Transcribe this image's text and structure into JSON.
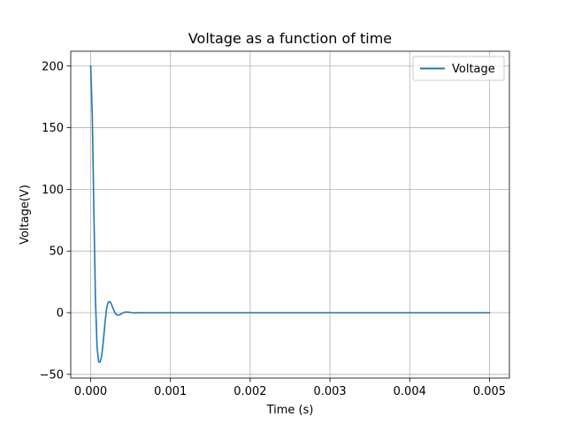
{
  "chart_data": {
    "type": "line",
    "title": "Voltage as a function of time",
    "xlabel": "Time (s)",
    "ylabel": "Voltage(V)",
    "xlim": [
      -0.00025,
      0.00525
    ],
    "ylim": [
      -53.0,
      212.0
    ],
    "xticks": [
      0.0,
      0.001,
      0.002,
      0.003,
      0.004,
      0.005
    ],
    "xtick_labels": [
      "0.000",
      "0.001",
      "0.002",
      "0.003",
      "0.004",
      "0.005"
    ],
    "yticks": [
      -50,
      0,
      50,
      100,
      150,
      200
    ],
    "ytick_labels": [
      "−50",
      "0",
      "50",
      "100",
      "150",
      "200"
    ],
    "grid": true,
    "legend_position": "upper right",
    "series": [
      {
        "name": "Voltage",
        "color": "#1f77b4",
        "x": [
          0.0,
          2e-05,
          4e-05,
          6e-05,
          8e-05,
          0.0001,
          0.00012,
          0.00014,
          0.00016,
          0.00018,
          0.0002,
          0.00022,
          0.00024,
          0.00026,
          0.00028,
          0.0003,
          0.00032,
          0.00034,
          0.00036,
          0.00038,
          0.0004,
          0.00042,
          0.00044,
          0.00046,
          0.00048,
          0.0005,
          0.00052,
          0.00054,
          0.00056,
          0.00058,
          0.0006,
          0.00062,
          0.00064,
          0.00066,
          0.00068,
          0.0007,
          0.00075,
          0.0008,
          0.0009,
          0.001,
          0.0015,
          0.002,
          0.0025,
          0.003,
          0.0035,
          0.004,
          0.0045,
          0.005
        ],
        "y": [
          200,
          160.0,
          82.0,
          10.0,
          -28.0,
          -40.0,
          -40.0,
          -34.0,
          -22.0,
          -8.0,
          4.0,
          8.5,
          9.0,
          7.0,
          3.5,
          0.5,
          -1.5,
          -2.0,
          -1.8,
          -1.0,
          -0.3,
          0.3,
          0.5,
          0.5,
          0.4,
          0.2,
          0.0,
          -0.1,
          -0.1,
          -0.05,
          0.0,
          0.02,
          0.02,
          0.01,
          0.0,
          0.0,
          0.0,
          0.0,
          0.0,
          0.0,
          0.0,
          0.0,
          0.0,
          0.0,
          0.0,
          0.0,
          0.0,
          0.0
        ]
      }
    ]
  }
}
